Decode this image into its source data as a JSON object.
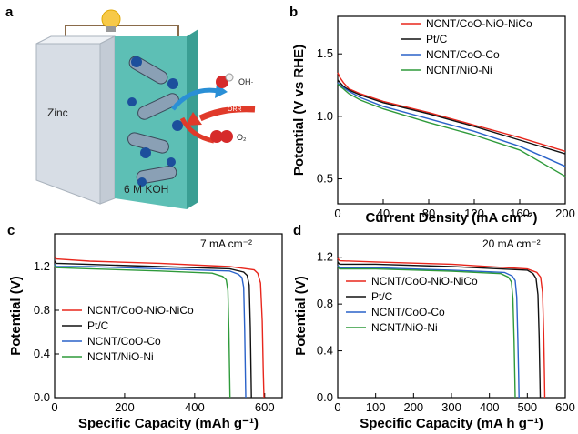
{
  "panel_labels": {
    "a": "a",
    "b": "b",
    "c": "c",
    "d": "d"
  },
  "illustration": {
    "anode_label": "Zinc",
    "electrolyte_label": "6 M KOH",
    "product_label": "OH·",
    "reaction_label": "ORR",
    "reactant_label": "O₂"
  },
  "colors": {
    "NCNT/CoO-NiO-NiCo": "#e8261c",
    "Pt/C": "#111111",
    "NCNT/CoO-Co": "#2a62c9",
    "NCNT/NiO-Ni": "#2e9a3a"
  },
  "chart_data": [
    {
      "id": "b",
      "type": "line",
      "xlabel": "Current Density (mA cm⁻²)",
      "ylabel": "Potential (V vs RHE)",
      "xlim": [
        0,
        200
      ],
      "ylim": [
        0.3,
        1.8
      ],
      "xticks": [
        0,
        40,
        80,
        120,
        160,
        200
      ],
      "yticks": [
        0.5,
        1.0,
        1.5
      ],
      "tick_labels_x": [
        "0",
        "40",
        "80",
        "120",
        "160",
        "200"
      ],
      "tick_labels_y": [
        "0.5",
        "1.0",
        "1.5"
      ],
      "legend_position": "top-right",
      "series": [
        {
          "name": "NCNT/CoO-NiO-NiCo",
          "color": "#e8261c",
          "x": [
            0,
            2,
            5,
            10,
            20,
            40,
            80,
            120,
            160,
            200
          ],
          "y": [
            1.35,
            1.31,
            1.27,
            1.22,
            1.18,
            1.12,
            1.03,
            0.93,
            0.83,
            0.72
          ]
        },
        {
          "name": "Pt/C",
          "color": "#111111",
          "x": [
            0,
            2,
            5,
            10,
            20,
            40,
            80,
            120,
            160,
            200
          ],
          "y": [
            1.29,
            1.27,
            1.24,
            1.21,
            1.17,
            1.11,
            1.02,
            0.92,
            0.81,
            0.7
          ]
        },
        {
          "name": "NCNT/CoO-Co",
          "color": "#2a62c9",
          "x": [
            0,
            2,
            5,
            10,
            20,
            40,
            80,
            120,
            160,
            200
          ],
          "y": [
            1.27,
            1.25,
            1.23,
            1.2,
            1.15,
            1.08,
            0.98,
            0.88,
            0.76,
            0.6
          ]
        },
        {
          "name": "NCNT/NiO-Ni",
          "color": "#2e9a3a",
          "x": [
            0,
            2,
            5,
            10,
            20,
            40,
            80,
            120,
            160,
            200
          ],
          "y": [
            1.26,
            1.24,
            1.22,
            1.18,
            1.13,
            1.06,
            0.95,
            0.85,
            0.73,
            0.52
          ]
        }
      ]
    },
    {
      "id": "c",
      "type": "line",
      "xlabel": "Specific Capacity (mAh g⁻¹)",
      "ylabel": "Potential (V)",
      "annotation": "7 mA cm⁻²",
      "xlim": [
        0,
        650
      ],
      "ylim": [
        0,
        1.5
      ],
      "xticks": [
        0,
        200,
        400,
        600
      ],
      "yticks": [
        0.0,
        0.4,
        0.8,
        1.2
      ],
      "tick_labels_x": [
        "0",
        "200",
        "400",
        "600"
      ],
      "tick_labels_y": [
        "0.0",
        "0.4",
        "0.8",
        "1.2"
      ],
      "legend_position": "bottom-left",
      "series": [
        {
          "name": "NCNT/CoO-NiO-NiCo",
          "color": "#e8261c",
          "x": [
            0,
            5,
            100,
            300,
            500,
            570,
            580,
            588,
            593,
            596,
            598
          ],
          "y": [
            1.29,
            1.27,
            1.25,
            1.23,
            1.2,
            1.17,
            1.14,
            1.05,
            0.7,
            0.25,
            0.0
          ]
        },
        {
          "name": "Pt/C",
          "color": "#111111",
          "x": [
            0,
            5,
            100,
            300,
            500,
            540,
            550,
            556,
            559,
            561,
            562
          ],
          "y": [
            1.25,
            1.23,
            1.22,
            1.2,
            1.18,
            1.15,
            1.12,
            1.03,
            0.65,
            0.22,
            0.0
          ]
        },
        {
          "name": "NCNT/CoO-Co",
          "color": "#2a62c9",
          "x": [
            0,
            5,
            100,
            300,
            500,
            525,
            535,
            540,
            543,
            545,
            546
          ],
          "y": [
            1.22,
            1.2,
            1.2,
            1.18,
            1.16,
            1.13,
            1.1,
            1.01,
            0.62,
            0.2,
            0.0
          ]
        },
        {
          "name": "NCNT/NiO-Ni",
          "color": "#2e9a3a",
          "x": [
            0,
            5,
            100,
            300,
            450,
            480,
            490,
            495,
            498,
            500,
            501
          ],
          "y": [
            1.21,
            1.19,
            1.18,
            1.16,
            1.14,
            1.11,
            1.08,
            0.98,
            0.6,
            0.2,
            0.0
          ]
        }
      ]
    },
    {
      "id": "d",
      "type": "line",
      "xlabel": "Specific Capacity (mA h g⁻¹)",
      "ylabel": "Potential (V)",
      "annotation": "20 mA cm⁻²",
      "xlim": [
        0,
        600
      ],
      "ylim": [
        0,
        1.4
      ],
      "xticks": [
        0,
        100,
        200,
        300,
        400,
        500,
        600
      ],
      "yticks": [
        0.0,
        0.4,
        0.8,
        1.2
      ],
      "tick_labels_x": [
        "0",
        "100",
        "200",
        "300",
        "400",
        "500",
        "600"
      ],
      "tick_labels_y": [
        "0.0",
        "0.4",
        "0.8",
        "1.2"
      ],
      "legend_position": "center-left",
      "series": [
        {
          "name": "NCNT/CoO-NiO-NiCo",
          "color": "#e8261c",
          "x": [
            0,
            5,
            100,
            300,
            500,
            525,
            535,
            540,
            543,
            545,
            546
          ],
          "y": [
            1.19,
            1.17,
            1.16,
            1.14,
            1.1,
            1.07,
            1.03,
            0.9,
            0.55,
            0.2,
            0.0
          ]
        },
        {
          "name": "Pt/C",
          "color": "#111111",
          "x": [
            0,
            5,
            100,
            300,
            500,
            515,
            523,
            528,
            531,
            533,
            534
          ],
          "y": [
            1.16,
            1.14,
            1.14,
            1.12,
            1.09,
            1.06,
            1.02,
            0.88,
            0.52,
            0.18,
            0.0
          ]
        },
        {
          "name": "NCNT/CoO-Co",
          "color": "#2a62c9",
          "x": [
            0,
            5,
            100,
            300,
            440,
            460,
            468,
            472,
            475,
            477,
            478
          ],
          "y": [
            1.13,
            1.11,
            1.11,
            1.09,
            1.07,
            1.04,
            1.0,
            0.86,
            0.5,
            0.18,
            0.0
          ]
        },
        {
          "name": "NCNT/NiO-Ni",
          "color": "#2e9a3a",
          "x": [
            0,
            5,
            100,
            300,
            430,
            450,
            458,
            462,
            465,
            467,
            468
          ],
          "y": [
            1.12,
            1.1,
            1.1,
            1.08,
            1.06,
            1.03,
            0.99,
            0.85,
            0.48,
            0.17,
            0.0
          ]
        }
      ]
    }
  ]
}
